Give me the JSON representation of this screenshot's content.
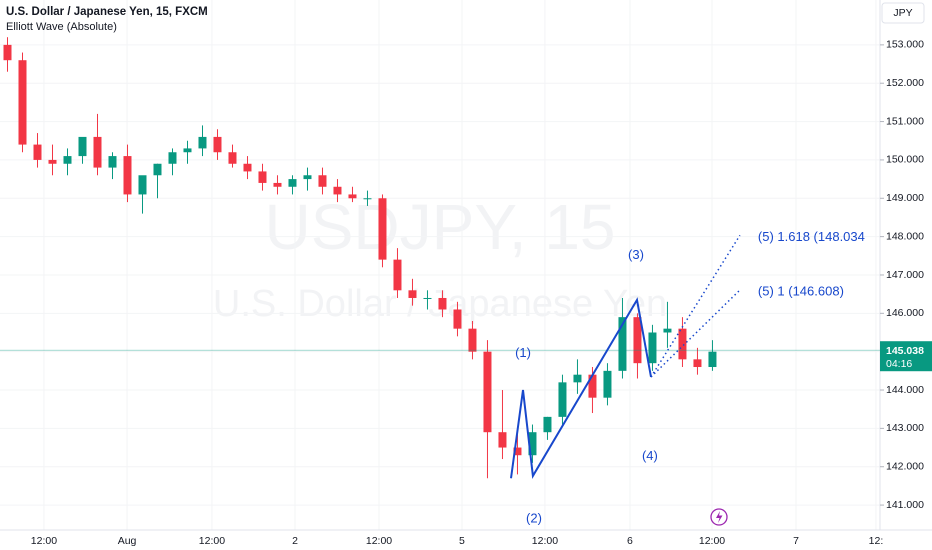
{
  "header": {
    "symbol": "U.S. Dollar / Japanese Yen, 15, FXCM",
    "indicator": "Elliott Wave (Absolute)",
    "currency": "JPY"
  },
  "watermark": {
    "ticker": "USDJPY, 15",
    "name": "U.S. Dollar / Japanese Yen"
  },
  "chart_data": {
    "type": "candlestick",
    "open": [
      153.0,
      152.6,
      150.4,
      150.0,
      149.9,
      150.1,
      150.6,
      149.8,
      150.1,
      149.1,
      149.6,
      149.9,
      150.2,
      150.3,
      150.6,
      150.2,
      149.9,
      149.7,
      149.4,
      149.3,
      149.5,
      149.6,
      149.3,
      149.1,
      149.0,
      149.0,
      147.4,
      146.6,
      146.4,
      146.4,
      146.1,
      145.6,
      145.0,
      142.9,
      142.5,
      142.3,
      142.9,
      143.3,
      144.2,
      144.4,
      143.8,
      144.5,
      145.9,
      144.7,
      145.5,
      145.6,
      144.8,
      144.6
    ],
    "high": [
      153.2,
      152.8,
      150.7,
      150.4,
      150.3,
      150.5,
      151.2,
      150.2,
      150.4,
      149.5,
      149.9,
      150.3,
      150.5,
      150.9,
      150.8,
      150.4,
      150.1,
      149.9,
      149.6,
      149.6,
      149.8,
      149.8,
      149.5,
      149.3,
      149.2,
      149.1,
      147.7,
      146.9,
      146.6,
      146.6,
      146.3,
      145.8,
      145.3,
      144.0,
      143.0,
      143.1,
      143.3,
      144.4,
      144.8,
      144.6,
      144.7,
      146.4,
      146.0,
      145.7,
      146.3,
      145.9,
      145.1,
      145.3
    ],
    "low": [
      152.3,
      150.2,
      149.8,
      149.6,
      149.6,
      149.9,
      149.6,
      149.5,
      148.9,
      148.6,
      149.0,
      149.6,
      149.9,
      150.1,
      150.0,
      149.8,
      149.5,
      149.2,
      149.1,
      149.1,
      149.2,
      149.1,
      148.9,
      148.9,
      148.8,
      147.2,
      146.4,
      146.2,
      146.1,
      145.9,
      145.4,
      144.8,
      141.7,
      142.2,
      141.8,
      142.1,
      142.7,
      143.1,
      143.9,
      143.4,
      143.6,
      144.3,
      144.3,
      144.5,
      145.1,
      144.6,
      144.4,
      144.5
    ],
    "close": [
      152.6,
      150.4,
      150.0,
      149.9,
      150.1,
      150.6,
      149.8,
      150.1,
      149.1,
      149.6,
      149.9,
      150.2,
      150.3,
      150.6,
      150.2,
      149.9,
      149.7,
      149.4,
      149.3,
      149.5,
      149.6,
      149.3,
      149.1,
      149.0,
      149.0,
      147.4,
      146.6,
      146.4,
      146.4,
      146.1,
      145.6,
      145.0,
      142.9,
      142.5,
      142.3,
      142.9,
      143.3,
      144.2,
      144.4,
      143.8,
      144.5,
      145.9,
      144.7,
      145.5,
      145.6,
      144.8,
      144.6,
      145.0
    ],
    "up_color": "#089981",
    "down_color": "#f23645",
    "ylim": [
      140.35,
      154.17
    ],
    "yticks": [
      {
        "value": 141,
        "label": "141.000"
      },
      {
        "value": 142,
        "label": "142.000"
      },
      {
        "value": 143,
        "label": "143.000"
      },
      {
        "value": 144,
        "label": "144.000"
      },
      {
        "value": 145,
        "label": "145.000"
      },
      {
        "value": 146,
        "label": "146.000"
      },
      {
        "value": 147,
        "label": "147.000"
      },
      {
        "value": 148,
        "label": "148.000"
      },
      {
        "value": 149,
        "label": "149.000"
      },
      {
        "value": 150,
        "label": "150.000"
      },
      {
        "value": 151,
        "label": "151.000"
      },
      {
        "value": 152,
        "label": "152.000"
      },
      {
        "value": 153,
        "label": "153.000"
      }
    ],
    "xlim": [
      0,
      58.67
    ],
    "xticks": [
      {
        "value": 2.93,
        "label": "12:00"
      },
      {
        "value": 8.47,
        "label": "Aug"
      },
      {
        "value": 14.13,
        "label": "12:00"
      },
      {
        "value": 19.67,
        "label": "2"
      },
      {
        "value": 25.27,
        "label": "12:00"
      },
      {
        "value": 30.8,
        "label": "5"
      },
      {
        "value": 36.33,
        "label": "12:00"
      },
      {
        "value": 42,
        "label": "6"
      },
      {
        "value": 47.47,
        "label": "12:00"
      },
      {
        "value": 53.07,
        "label": "7"
      },
      {
        "value": 58.4,
        "label": "12:"
      }
    ],
    "last_price": 145.038,
    "countdown": "04:16",
    "last_color": "#089981",
    "wave": {
      "color": "#1848cc",
      "x": [
        34.07,
        34.87,
        35.53,
        42.47,
        43.4
      ],
      "y": [
        141.7,
        144.0,
        141.76,
        146.35,
        144.34
      ],
      "labels": [
        "(1)",
        "(2)",
        "(3)",
        "(4)"
      ],
      "label_x": [
        34.87,
        35.6,
        42.4,
        43.33
      ],
      "label_y": [
        144.95,
        140.63,
        147.5,
        142.27
      ],
      "targets": [
        {
          "x": 49.33,
          "y": 148.034,
          "label": "(5) 1.618 (148.034"
        },
        {
          "x": 49.33,
          "y": 146.608,
          "label": "(5) 1 (146.608)"
        }
      ]
    }
  }
}
